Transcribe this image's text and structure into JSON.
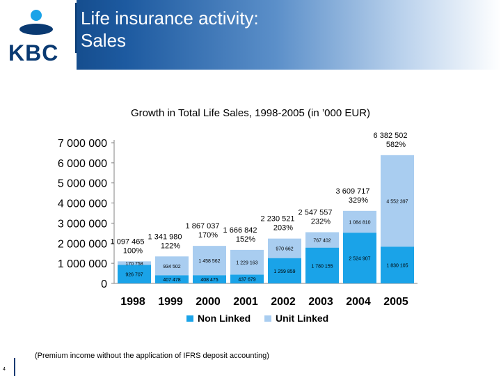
{
  "slide": {
    "title_line1": "Life insurance activity:",
    "title_line2": "Sales",
    "logo_text": "KBC",
    "footnote": "(Premium income without the application of IFRS deposit accounting)",
    "page_number": "4"
  },
  "colors": {
    "non_linked": "#1aa3e8",
    "unit_linked": "#a9cdf0",
    "header_dark": "#0a3a72"
  },
  "chart_data": {
    "type": "bar",
    "stacked": true,
    "title": "Growth in Total Life Sales, 1998-2005 (in ’000 EUR)",
    "categories": [
      "1998",
      "1999",
      "2000",
      "2001",
      "2002",
      "2003",
      "2004",
      "2005"
    ],
    "series": [
      {
        "name": "Non Linked",
        "values": [
          926707,
          407478,
          408475,
          437679,
          1259859,
          1780155,
          2524907,
          1830105
        ],
        "labels": [
          "926 707",
          "407 478",
          "408 475",
          "437 679",
          "1 259 859",
          "1 780 155",
          "2 524 907",
          "1 830 105"
        ]
      },
      {
        "name": "Unit Linked",
        "values": [
          170758,
          934502,
          1458562,
          1229163,
          970662,
          767402,
          1084810,
          4552397
        ],
        "labels": [
          "170 758",
          "934 502",
          "1 458 562",
          "1 229 163",
          "970 662",
          "767 402",
          "1 084 810",
          "4 552 397"
        ]
      }
    ],
    "totals": [
      "1 097 465",
      "1 341 980",
      "1 867 037",
      "1 666 842",
      "2 230 521",
      "2 547 557",
      "3 609 717",
      "6 382 502"
    ],
    "growth": [
      "100%",
      "122%",
      "170%",
      "152%",
      "203%",
      "232%",
      "329%",
      "582%"
    ],
    "ylim": [
      0,
      7000000
    ],
    "yticks": [
      "0",
      "1 000 000",
      "2 000 000",
      "3 000 000",
      "4 000 000",
      "5 000 000",
      "6 000 000",
      "7 000 000"
    ],
    "legend_position": "bottom"
  }
}
